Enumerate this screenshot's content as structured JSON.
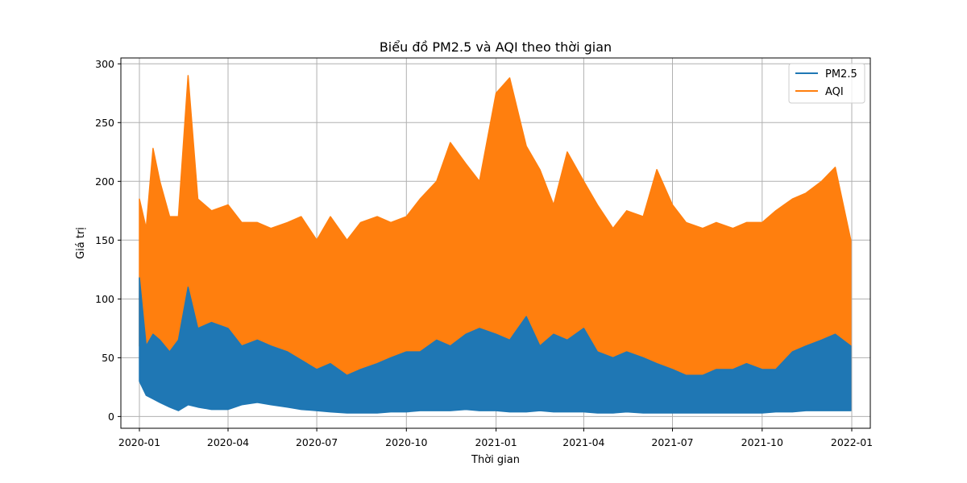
{
  "chart_data": {
    "type": "line",
    "title": "Biểu đồ PM2.5 và AQI theo thời gian",
    "xlabel": "Thời gian",
    "ylabel": "Giá trị",
    "xlim": [
      "2019-12-13",
      "2022-01-20"
    ],
    "ylim": [
      -10,
      305
    ],
    "x_ticks": [
      "2020-01",
      "2020-04",
      "2020-07",
      "2020-10",
      "2021-01",
      "2021-04",
      "2021-07",
      "2021-10",
      "2022-01"
    ],
    "x_tick_dates": [
      "2020-01-01",
      "2020-04-01",
      "2020-07-01",
      "2020-10-01",
      "2021-01-01",
      "2021-04-01",
      "2021-07-01",
      "2021-10-01",
      "2022-01-01"
    ],
    "y_ticks": [
      0,
      50,
      100,
      150,
      200,
      250,
      300
    ],
    "grid": true,
    "legend_position": "top-right",
    "legend": [
      "PM2.5",
      "AQI"
    ],
    "colors": {
      "PM2.5": "#1f77b4",
      "AQI": "#ff7f0e"
    },
    "x": [
      "2020-01-01",
      "2020-01-08",
      "2020-01-15",
      "2020-01-22",
      "2020-02-01",
      "2020-02-10",
      "2020-02-20",
      "2020-03-01",
      "2020-03-15",
      "2020-04-01",
      "2020-04-15",
      "2020-05-01",
      "2020-05-15",
      "2020-06-01",
      "2020-06-15",
      "2020-07-01",
      "2020-07-15",
      "2020-08-01",
      "2020-08-15",
      "2020-09-01",
      "2020-09-15",
      "2020-10-01",
      "2020-10-15",
      "2020-11-01",
      "2020-11-15",
      "2020-12-01",
      "2020-12-15",
      "2021-01-01",
      "2021-01-15",
      "2021-02-01",
      "2021-02-15",
      "2021-03-01",
      "2021-03-15",
      "2021-04-01",
      "2021-04-15",
      "2021-05-01",
      "2021-05-15",
      "2021-06-01",
      "2021-06-15",
      "2021-07-01",
      "2021-07-15",
      "2021-08-01",
      "2021-08-15",
      "2021-09-01",
      "2021-09-15",
      "2021-10-01",
      "2021-10-15",
      "2021-11-01",
      "2021-11-15",
      "2021-12-01",
      "2021-12-15",
      "2021-12-31"
    ],
    "series": [
      {
        "name": "PM2.5",
        "max": [
          118,
          60,
          70,
          65,
          55,
          65,
          110,
          75,
          80,
          75,
          60,
          65,
          60,
          55,
          48,
          40,
          45,
          35,
          40,
          45,
          50,
          55,
          55,
          65,
          60,
          70,
          75,
          70,
          65,
          85,
          60,
          70,
          65,
          75,
          55,
          50,
          55,
          50,
          45,
          40,
          35,
          35,
          40,
          40,
          45,
          40,
          40,
          55,
          60,
          65,
          70,
          60
        ],
        "min": [
          30,
          18,
          15,
          12,
          8,
          5,
          10,
          8,
          6,
          6,
          10,
          12,
          10,
          8,
          6,
          5,
          4,
          3,
          3,
          3,
          4,
          4,
          5,
          5,
          5,
          6,
          5,
          5,
          4,
          4,
          5,
          4,
          4,
          4,
          3,
          3,
          4,
          3,
          3,
          3,
          3,
          3,
          3,
          3,
          3,
          3,
          4,
          4,
          5,
          5,
          5,
          5
        ]
      },
      {
        "name": "AQI",
        "max": [
          185,
          160,
          228,
          200,
          170,
          170,
          290,
          185,
          175,
          180,
          165,
          165,
          160,
          165,
          170,
          150,
          170,
          150,
          165,
          170,
          165,
          170,
          185,
          200,
          233,
          215,
          200,
          275,
          288,
          230,
          210,
          180,
          225,
          200,
          180,
          160,
          175,
          170,
          210,
          180,
          165,
          160,
          165,
          160,
          165,
          165,
          175,
          185,
          190,
          200,
          212,
          150
        ],
        "min": [
          60,
          40,
          35,
          25,
          15,
          10,
          20,
          18,
          15,
          20,
          25,
          30,
          25,
          20,
          15,
          12,
          10,
          8,
          8,
          8,
          10,
          10,
          10,
          12,
          12,
          15,
          12,
          12,
          10,
          10,
          12,
          10,
          10,
          10,
          8,
          8,
          10,
          8,
          8,
          8,
          8,
          8,
          8,
          8,
          8,
          8,
          10,
          10,
          12,
          12,
          12,
          12
        ]
      }
    ]
  }
}
